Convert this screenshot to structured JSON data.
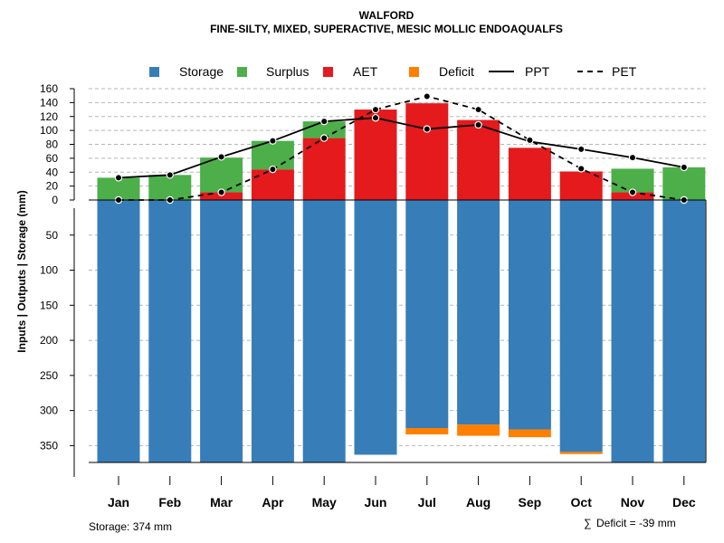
{
  "chart_data": {
    "type": "bar",
    "title": "WALFORD",
    "subtitle": "FINE-SILTY, MIXED, SUPERACTIVE, MESIC MOLLIC ENDOAQUALFS",
    "ylabel": "Inputs | Outputs | Storage    (mm)",
    "categories": [
      "Jan",
      "Feb",
      "Mar",
      "Apr",
      "May",
      "Jun",
      "Jul",
      "Aug",
      "Sep",
      "Oct",
      "Nov",
      "Dec"
    ],
    "upper_ticks": [
      0,
      20,
      40,
      60,
      80,
      100,
      120,
      140,
      160
    ],
    "upper_ylim": [
      0,
      160
    ],
    "lower_ticks": [
      50,
      100,
      150,
      200,
      250,
      300,
      350
    ],
    "lower_ylim": [
      0,
      374
    ],
    "series": [
      {
        "name": "Storage",
        "color": "#377eb8",
        "values": [
          374,
          374,
          374,
          374,
          374,
          363,
          325,
          320,
          327,
          359,
          374,
          374
        ]
      },
      {
        "name": "Surplus",
        "color": "#4daf4a",
        "values": [
          32,
          36,
          50,
          41,
          24,
          0,
          0,
          0,
          0,
          0,
          34,
          47
        ]
      },
      {
        "name": "AET",
        "color": "#e41a1c",
        "values": [
          0,
          0,
          11,
          44,
          89,
          130,
          139,
          115,
          75,
          41,
          11,
          0
        ]
      },
      {
        "name": "Deficit",
        "color": "#ff7f00",
        "values": [
          0,
          0,
          0,
          0,
          0,
          0,
          9,
          16,
          11,
          3,
          0,
          0
        ]
      },
      {
        "name": "PPT",
        "color": "#000000",
        "style": "solid",
        "values": [
          32,
          36,
          62,
          85,
          113,
          118,
          102,
          108,
          84,
          73,
          61,
          47
        ]
      },
      {
        "name": "PET",
        "color": "#000000",
        "style": "dashed",
        "values": [
          0,
          0,
          11,
          44,
          89,
          130,
          149,
          130,
          86,
          45,
          11,
          0
        ]
      }
    ],
    "legend": [
      "Storage",
      "Surplus",
      "AET",
      "Deficit",
      "PPT",
      "PET"
    ],
    "legend_position": "top",
    "grid": true
  },
  "footer": {
    "storage": "Storage: 374 mm",
    "deficit_symbol": "∑",
    "deficit": "Deficit = -39 mm"
  }
}
